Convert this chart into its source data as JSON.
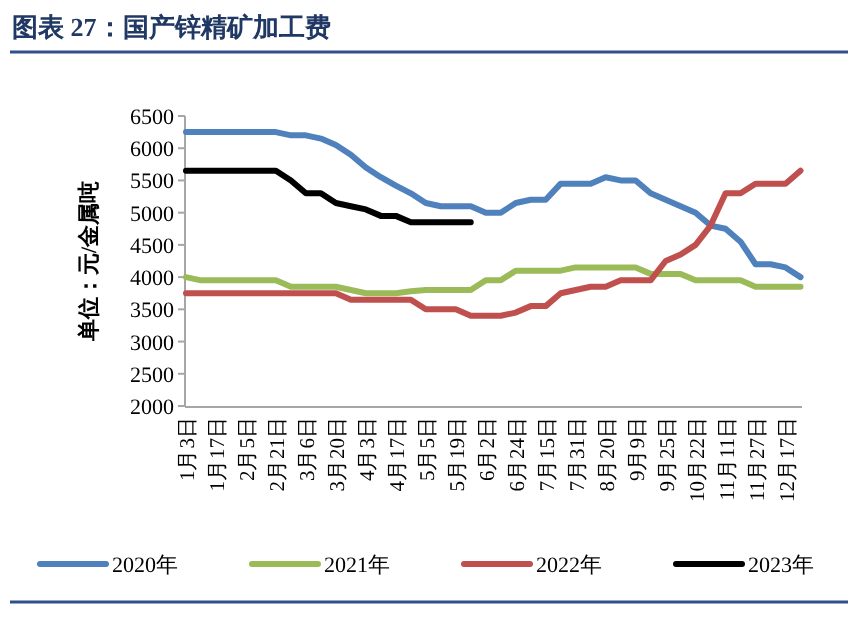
{
  "chart_data": {
    "type": "line",
    "title": "图表 27：国产锌精矿加工费",
    "ylabel": "单位：元/金属吨",
    "categories": [
      "1月3日",
      null,
      "1月17日",
      null,
      "2月5日",
      null,
      "2月21日",
      null,
      "3月6日",
      null,
      "3月20日",
      null,
      "4月3日",
      null,
      "4月17日",
      null,
      "5月5日",
      null,
      "5月19日",
      null,
      "6月2日",
      null,
      "6月24日",
      null,
      "7月15日",
      null,
      "7月31日",
      null,
      "8月20日",
      null,
      "9月9日",
      null,
      "9月25日",
      null,
      "10月22日",
      null,
      "11月11日",
      null,
      "11月27日",
      null,
      "12月17日",
      null
    ],
    "series": [
      {
        "name": "2020年",
        "color": "#4f81bd",
        "values": [
          6250,
          6250,
          6250,
          6250,
          6250,
          6250,
          6250,
          6200,
          6200,
          6150,
          6050,
          5900,
          5700,
          5550,
          5420,
          5300,
          5150,
          5100,
          5100,
          5100,
          5000,
          5000,
          5150,
          5200,
          5200,
          5450,
          5450,
          5450,
          5550,
          5500,
          5500,
          5300,
          5200,
          5100,
          5000,
          4800,
          4750,
          4550,
          4200,
          4200,
          4150,
          4000
        ]
      },
      {
        "name": "2021年",
        "color": "#9bbb59",
        "values": [
          4000,
          3950,
          3950,
          3950,
          3950,
          3950,
          3950,
          3850,
          3850,
          3850,
          3850,
          3800,
          3750,
          3750,
          3750,
          3780,
          3800,
          3800,
          3800,
          3800,
          3950,
          3950,
          4100,
          4100,
          4100,
          4100,
          4150,
          4150,
          4150,
          4150,
          4150,
          4050,
          4050,
          4050,
          3950,
          3950,
          3950,
          3950,
          3850,
          3850,
          3850,
          3850
        ]
      },
      {
        "name": "2022年",
        "color": "#c0504d",
        "values": [
          3750,
          3750,
          3750,
          3750,
          3750,
          3750,
          3750,
          3750,
          3750,
          3750,
          3750,
          3650,
          3650,
          3650,
          3650,
          3650,
          3500,
          3500,
          3500,
          3400,
          3400,
          3400,
          3450,
          3550,
          3550,
          3750,
          3800,
          3850,
          3850,
          3950,
          3950,
          3950,
          4250,
          4350,
          4500,
          4800,
          5300,
          5300,
          5450,
          5450,
          5450,
          5650
        ]
      },
      {
        "name": "2023年",
        "color": "#000000",
        "values": [
          5650,
          5650,
          5650,
          5650,
          5650,
          5650,
          5650,
          5500,
          5300,
          5300,
          5150,
          5100,
          5050,
          4950,
          4950,
          4850,
          4850,
          4850,
          4850,
          4850,
          null,
          null,
          null,
          null,
          null,
          null,
          null,
          null,
          null,
          null,
          null,
          null,
          null,
          null,
          null,
          null,
          null,
          null,
          null,
          null,
          null,
          null
        ]
      }
    ],
    "ylim": [
      2000,
      6500
    ],
    "yticks": [
      2000,
      2500,
      3000,
      3500,
      4000,
      4500,
      5000,
      5500,
      6000,
      6500
    ],
    "legend": "bottom"
  }
}
